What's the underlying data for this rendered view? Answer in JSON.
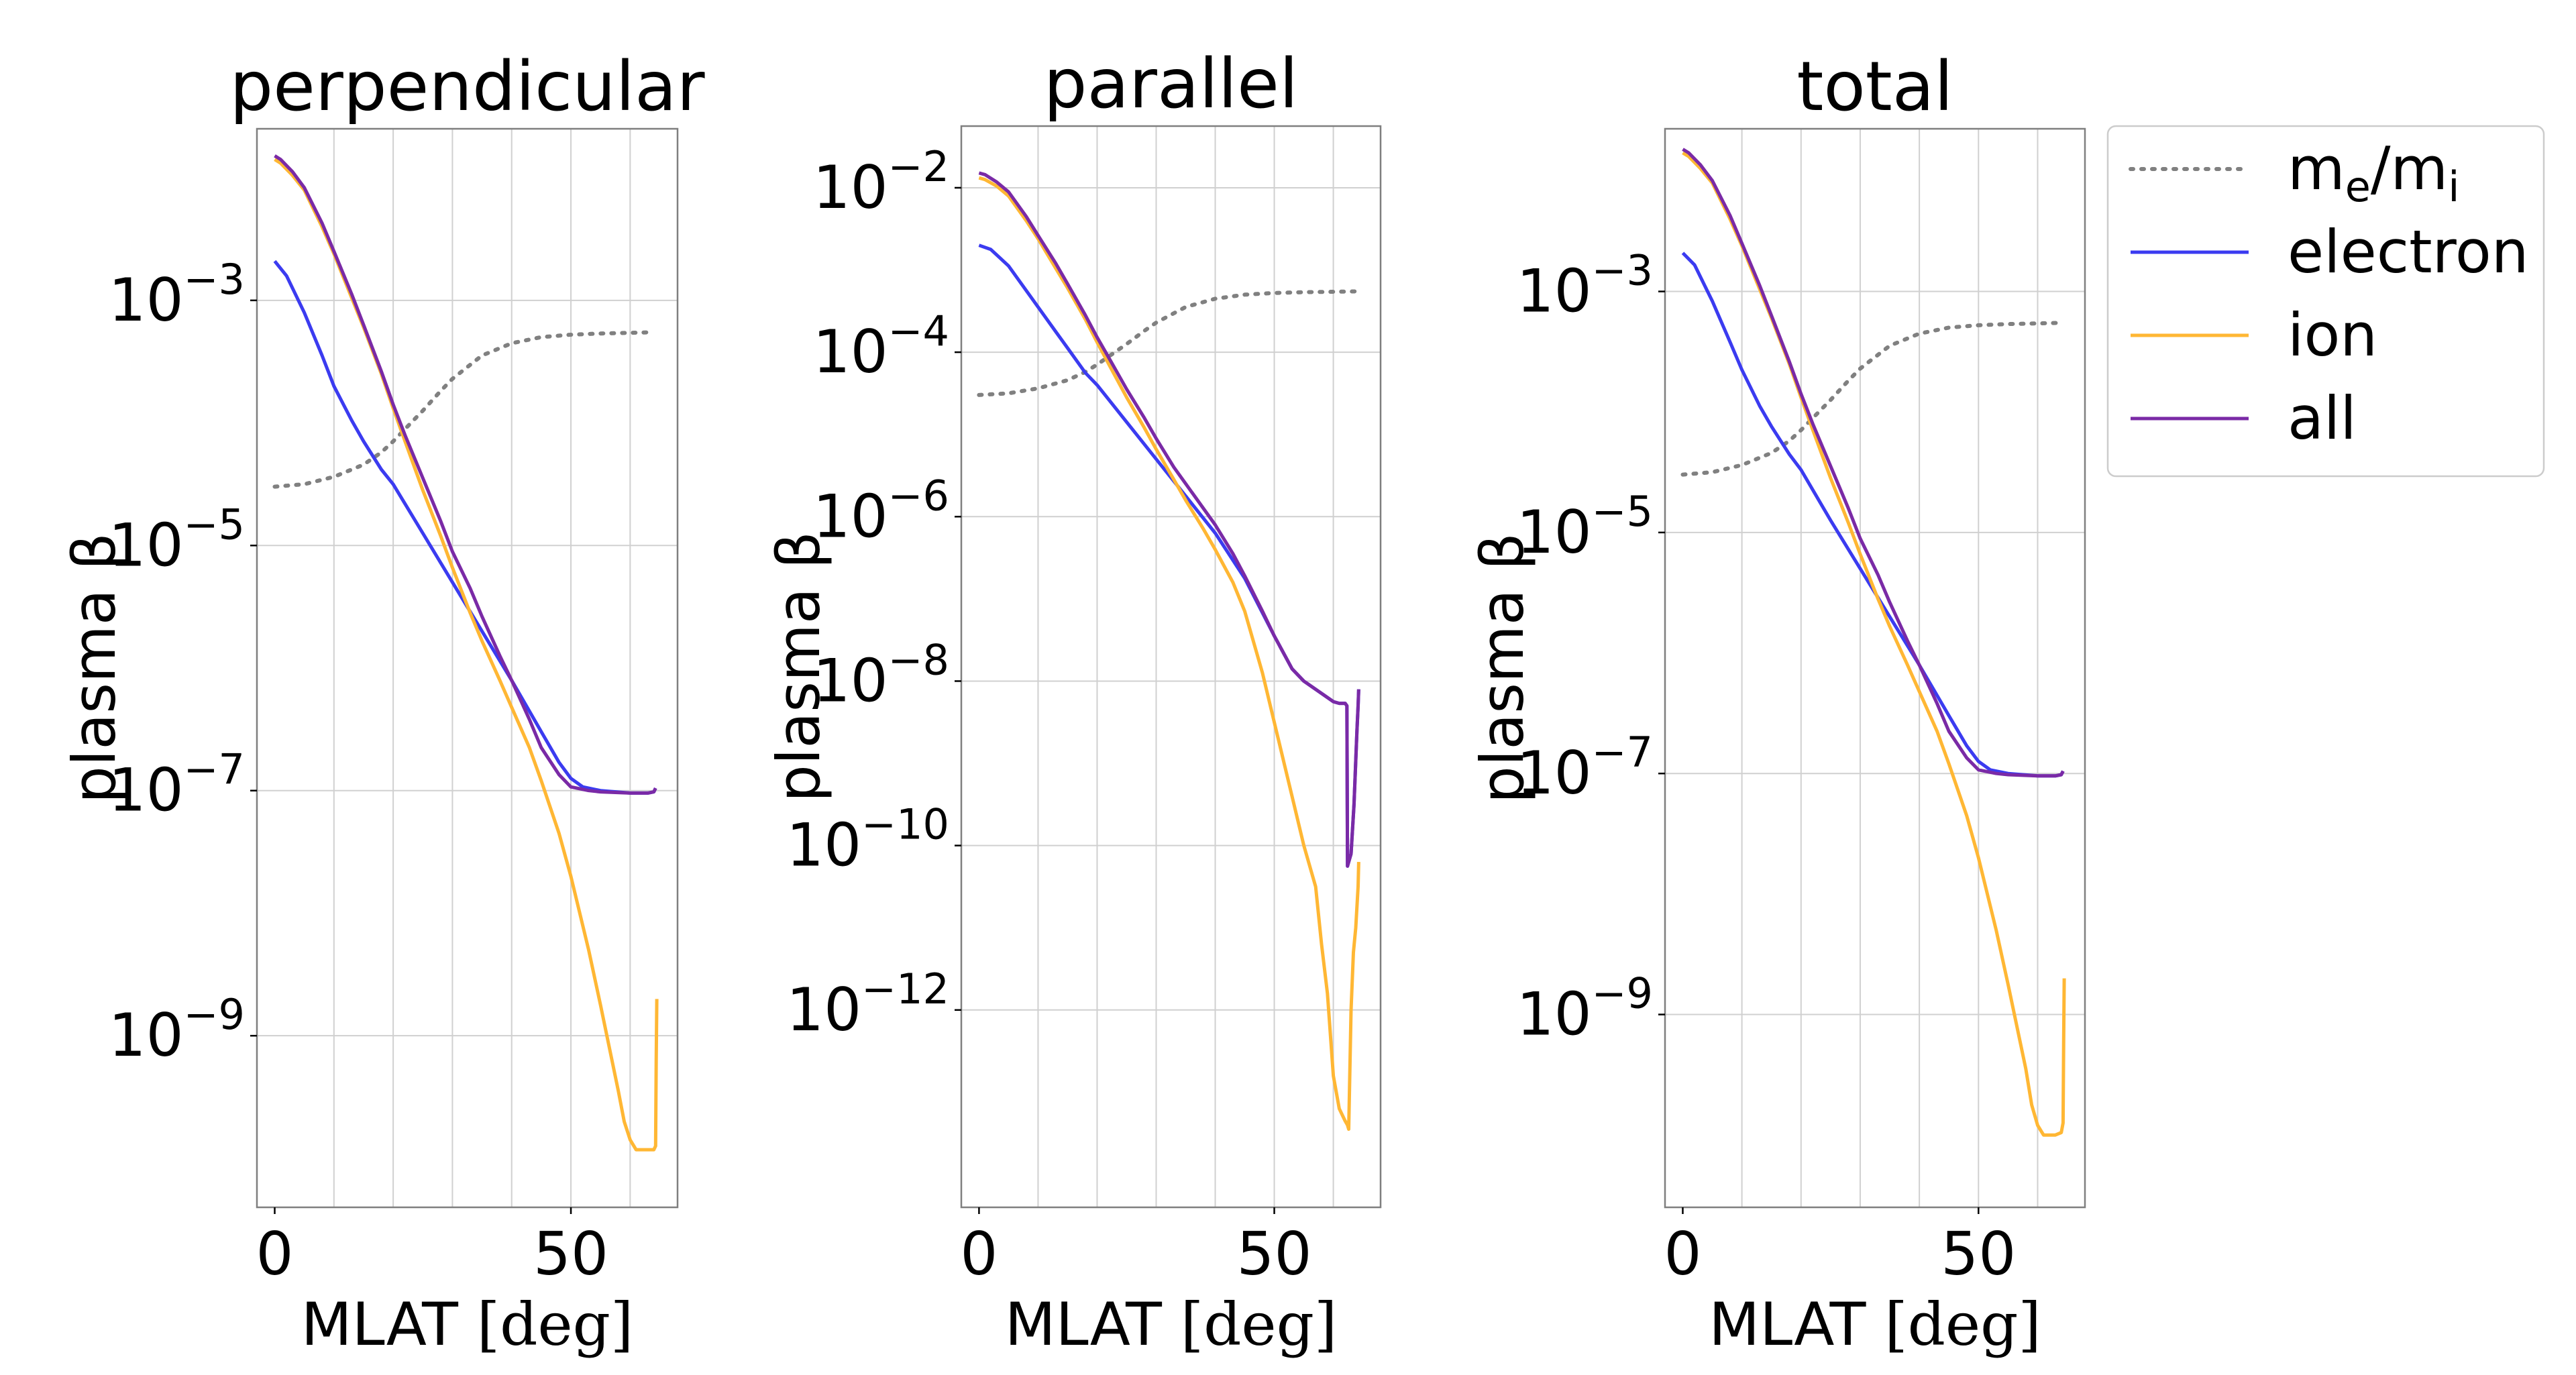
{
  "figure": {
    "colors": {
      "me_mi": "#808080",
      "electron": "#3b3bf0",
      "ion": "#ffb734",
      "all": "#7a2aa6",
      "grid": "#d0d0d0",
      "axis": "#7f7f7f"
    },
    "legend": {
      "placement": "top-right, outside panels",
      "entries": [
        {
          "key": "me_mi",
          "parts": [
            {
              "t": "m"
            },
            {
              "t": "e",
              "sub": true
            },
            {
              "t": "/m"
            },
            {
              "t": "i",
              "sub": true
            }
          ],
          "style": "dotted"
        },
        {
          "key": "electron",
          "label": "electron",
          "style": "solid"
        },
        {
          "key": "ion",
          "label": "ion",
          "style": "solid"
        },
        {
          "key": "all",
          "label": "all",
          "style": "solid"
        }
      ]
    }
  },
  "chart_data": [
    {
      "type": "line",
      "title": "perpendicular",
      "xlabel_main": "MLAT ",
      "xlabel_unit": "[deg]",
      "ylabel": "plasma β",
      "yscale": "log",
      "xlim": [
        -3,
        68
      ],
      "ylim_exp": [
        -10.4,
        -1.6
      ],
      "xticks": [
        {
          "v": 0,
          "label": "0"
        },
        {
          "v": 50,
          "label": "50"
        }
      ],
      "xgrid": [
        10,
        20,
        30,
        40,
        50,
        60
      ],
      "yticks": [
        {
          "e": -3,
          "label": "10−3"
        },
        {
          "e": -5,
          "label": "10−5"
        },
        {
          "e": -7,
          "label": "10−7"
        },
        {
          "e": -9,
          "label": "10−9"
        }
      ],
      "ygrid": [
        -3,
        -5,
        -7,
        -9
      ],
      "grid": true,
      "series": [
        {
          "name": "me_mi",
          "x": [
            0,
            5,
            10,
            15,
            18,
            20,
            23,
            25,
            28,
            30,
            35,
            40,
            45,
            50,
            55,
            60,
            64
          ],
          "y": [
            -4.52,
            -4.5,
            -4.44,
            -4.34,
            -4.24,
            -4.15,
            -4.0,
            -3.9,
            -3.74,
            -3.64,
            -3.45,
            -3.35,
            -3.3,
            -3.28,
            -3.27,
            -3.265,
            -3.26
          ]
        },
        {
          "name": "electron",
          "x": [
            0,
            2,
            5,
            8,
            10,
            13,
            15,
            18,
            20,
            25,
            30,
            35,
            40,
            45,
            48,
            50,
            52,
            55,
            60,
            63,
            64,
            64.3
          ],
          "y": [
            -2.68,
            -2.8,
            -3.1,
            -3.45,
            -3.7,
            -3.98,
            -4.15,
            -4.38,
            -4.5,
            -4.9,
            -5.3,
            -5.7,
            -6.1,
            -6.52,
            -6.77,
            -6.9,
            -6.97,
            -7.0,
            -7.02,
            -7.02,
            -7.01,
            -6.98
          ]
        },
        {
          "name": "ion",
          "x": [
            0,
            1,
            3,
            5,
            8,
            10,
            13,
            15,
            18,
            20,
            22,
            25,
            28,
            30,
            33,
            35,
            38,
            40,
            43,
            45,
            48,
            50,
            53,
            55,
            58,
            59,
            60,
            61,
            62,
            63,
            64,
            64.3,
            64.4,
            64.5
          ],
          "y": [
            -1.85,
            -1.88,
            -1.98,
            -2.1,
            -2.4,
            -2.62,
            -2.98,
            -3.22,
            -3.6,
            -3.88,
            -4.15,
            -4.55,
            -4.92,
            -5.18,
            -5.55,
            -5.78,
            -6.1,
            -6.32,
            -6.65,
            -6.92,
            -7.35,
            -7.7,
            -8.3,
            -8.75,
            -9.45,
            -9.7,
            -9.85,
            -9.93,
            -9.93,
            -9.93,
            -9.93,
            -9.9,
            -9.2,
            -8.7
          ]
        },
        {
          "name": "all",
          "x": [
            0,
            1,
            3,
            5,
            8,
            10,
            13,
            15,
            18,
            20,
            22,
            25,
            28,
            30,
            33,
            35,
            38,
            40,
            43,
            45,
            48,
            50,
            53,
            55,
            60,
            63,
            64,
            64.3
          ],
          "y": [
            -1.82,
            -1.85,
            -1.95,
            -2.08,
            -2.37,
            -2.6,
            -2.95,
            -3.2,
            -3.58,
            -3.85,
            -4.1,
            -4.45,
            -4.8,
            -5.05,
            -5.35,
            -5.58,
            -5.9,
            -6.1,
            -6.42,
            -6.65,
            -6.87,
            -6.97,
            -7.0,
            -7.01,
            -7.02,
            -7.02,
            -7.01,
            -6.98
          ]
        }
      ]
    },
    {
      "type": "line",
      "title": "parallel",
      "xlabel_main": "MLAT ",
      "xlabel_unit": "[deg]",
      "ylabel": "plasma β",
      "yscale": "log",
      "xlim": [
        -3,
        68
      ],
      "ylim_exp": [
        -14.4,
        -1.25
      ],
      "xticks": [
        {
          "v": 0,
          "label": "0"
        },
        {
          "v": 50,
          "label": "50"
        }
      ],
      "xgrid": [
        10,
        20,
        30,
        40,
        50,
        60
      ],
      "yticks": [
        {
          "e": -2,
          "label": "10−2"
        },
        {
          "e": -4,
          "label": "10−4"
        },
        {
          "e": -6,
          "label": "10−6"
        },
        {
          "e": -8,
          "label": "10−8"
        },
        {
          "e": -10,
          "label": "10−10"
        },
        {
          "e": -12,
          "label": "10−12"
        }
      ],
      "ygrid": [
        -2,
        -4,
        -6,
        -8,
        -10,
        -12
      ],
      "grid": true,
      "series": [
        {
          "name": "me_mi",
          "x": [
            0,
            5,
            10,
            15,
            18,
            20,
            23,
            25,
            28,
            30,
            35,
            40,
            45,
            50,
            55,
            60,
            64
          ],
          "y": [
            -4.52,
            -4.5,
            -4.44,
            -4.34,
            -4.24,
            -4.15,
            -4.0,
            -3.9,
            -3.74,
            -3.64,
            -3.45,
            -3.35,
            -3.3,
            -3.28,
            -3.27,
            -3.265,
            -3.26
          ]
        },
        {
          "name": "electron",
          "x": [
            0,
            2,
            5,
            8,
            10,
            13,
            15,
            18,
            20,
            25,
            30,
            35,
            40,
            45,
            50,
            53,
            55,
            58,
            60,
            61,
            62,
            62.3,
            62.4,
            62.6,
            63,
            63.5,
            64,
            64.2,
            64.3
          ],
          "y": [
            -2.7,
            -2.75,
            -2.95,
            -3.25,
            -3.45,
            -3.75,
            -3.95,
            -4.25,
            -4.4,
            -4.85,
            -5.3,
            -5.75,
            -6.2,
            -6.75,
            -7.45,
            -7.85,
            -8.0,
            -8.15,
            -8.25,
            -8.27,
            -8.27,
            -8.3,
            -10.25,
            -10.2,
            -10.1,
            -9.5,
            -8.6,
            -8.3,
            -8.1
          ]
        },
        {
          "name": "ion",
          "x": [
            0,
            1,
            3,
            5,
            8,
            10,
            13,
            15,
            18,
            20,
            22,
            25,
            28,
            30,
            33,
            35,
            38,
            40,
            43,
            45,
            48,
            50,
            53,
            55,
            57,
            58,
            59,
            60,
            61,
            62,
            62.4,
            62.6,
            63,
            63.4,
            63.8,
            64.2,
            64.3
          ],
          "y": [
            -1.88,
            -1.9,
            -1.98,
            -2.1,
            -2.4,
            -2.62,
            -2.98,
            -3.22,
            -3.6,
            -3.88,
            -4.15,
            -4.55,
            -4.92,
            -5.18,
            -5.55,
            -5.8,
            -6.15,
            -6.4,
            -6.8,
            -7.15,
            -7.9,
            -8.5,
            -9.4,
            -10.0,
            -10.5,
            -11.2,
            -11.8,
            -12.8,
            -13.2,
            -13.35,
            -13.4,
            -13.45,
            -12.0,
            -11.3,
            -11.0,
            -10.5,
            -10.2
          ]
        },
        {
          "name": "all",
          "x": [
            0,
            1,
            3,
            5,
            8,
            10,
            13,
            15,
            18,
            20,
            22,
            25,
            28,
            30,
            33,
            35,
            38,
            40,
            43,
            45,
            48,
            50,
            53,
            55,
            58,
            60,
            61,
            62,
            62.3,
            62.4,
            62.6,
            63,
            63.5,
            64,
            64.2,
            64.3
          ],
          "y": [
            -1.82,
            -1.84,
            -1.93,
            -2.05,
            -2.35,
            -2.58,
            -2.92,
            -3.17,
            -3.55,
            -3.82,
            -4.07,
            -4.45,
            -4.8,
            -5.05,
            -5.4,
            -5.6,
            -5.9,
            -6.1,
            -6.45,
            -6.72,
            -7.15,
            -7.45,
            -7.85,
            -8.0,
            -8.15,
            -8.25,
            -8.27,
            -8.27,
            -8.3,
            -10.25,
            -10.2,
            -10.1,
            -9.5,
            -8.6,
            -8.3,
            -8.1
          ]
        }
      ]
    },
    {
      "type": "line",
      "title": "total",
      "xlabel_main": "MLAT ",
      "xlabel_unit": "[deg]",
      "ylabel": "plasma β",
      "yscale": "log",
      "xlim": [
        -3,
        68
      ],
      "ylim_exp": [
        -10.6,
        -1.65
      ],
      "xticks": [
        {
          "v": 0,
          "label": "0"
        },
        {
          "v": 50,
          "label": "50"
        }
      ],
      "xgrid": [
        10,
        20,
        30,
        40,
        50,
        60
      ],
      "yticks": [
        {
          "e": -3,
          "label": "10−3"
        },
        {
          "e": -5,
          "label": "10−5"
        },
        {
          "e": -7,
          "label": "10−7"
        },
        {
          "e": -9,
          "label": "10−9"
        }
      ],
      "ygrid": [
        -3,
        -5,
        -7,
        -9
      ],
      "grid": true,
      "series": [
        {
          "name": "me_mi",
          "x": [
            0,
            5,
            10,
            15,
            18,
            20,
            23,
            25,
            28,
            30,
            35,
            40,
            45,
            50,
            55,
            60,
            64
          ],
          "y": [
            -4.52,
            -4.5,
            -4.44,
            -4.34,
            -4.24,
            -4.15,
            -4.0,
            -3.9,
            -3.74,
            -3.64,
            -3.45,
            -3.35,
            -3.3,
            -3.28,
            -3.27,
            -3.265,
            -3.26
          ]
        },
        {
          "name": "electron",
          "x": [
            0,
            2,
            5,
            8,
            10,
            13,
            15,
            18,
            20,
            25,
            30,
            35,
            40,
            45,
            48,
            50,
            52,
            55,
            60,
            63,
            64,
            64.3
          ],
          "y": [
            -2.68,
            -2.78,
            -3.08,
            -3.42,
            -3.65,
            -3.95,
            -4.12,
            -4.35,
            -4.48,
            -4.9,
            -5.3,
            -5.7,
            -6.1,
            -6.52,
            -6.77,
            -6.9,
            -6.97,
            -7.0,
            -7.02,
            -7.02,
            -7.01,
            -6.98
          ]
        },
        {
          "name": "ion",
          "x": [
            0,
            1,
            3,
            5,
            8,
            10,
            13,
            15,
            18,
            20,
            22,
            25,
            28,
            30,
            33,
            35,
            38,
            40,
            43,
            45,
            48,
            50,
            53,
            55,
            58,
            59,
            60,
            61,
            62,
            63,
            64,
            64.3,
            64.4,
            64.5
          ],
          "y": [
            -1.85,
            -1.88,
            -1.98,
            -2.1,
            -2.4,
            -2.62,
            -2.98,
            -3.22,
            -3.6,
            -3.88,
            -4.15,
            -4.55,
            -4.92,
            -5.18,
            -5.55,
            -5.78,
            -6.1,
            -6.32,
            -6.65,
            -6.92,
            -7.35,
            -7.7,
            -8.3,
            -8.75,
            -9.45,
            -9.75,
            -9.92,
            -10.0,
            -10.0,
            -10.0,
            -9.98,
            -9.9,
            -9.2,
            -8.7
          ]
        },
        {
          "name": "all",
          "x": [
            0,
            1,
            3,
            5,
            8,
            10,
            13,
            15,
            18,
            20,
            22,
            25,
            28,
            30,
            33,
            35,
            38,
            40,
            43,
            45,
            48,
            50,
            53,
            55,
            60,
            63,
            64,
            64.3
          ],
          "y": [
            -1.82,
            -1.85,
            -1.95,
            -2.08,
            -2.37,
            -2.6,
            -2.95,
            -3.2,
            -3.58,
            -3.85,
            -4.1,
            -4.45,
            -4.8,
            -5.05,
            -5.35,
            -5.58,
            -5.9,
            -6.1,
            -6.42,
            -6.65,
            -6.87,
            -6.97,
            -7.0,
            -7.01,
            -7.02,
            -7.02,
            -7.01,
            -6.98
          ]
        }
      ]
    }
  ]
}
